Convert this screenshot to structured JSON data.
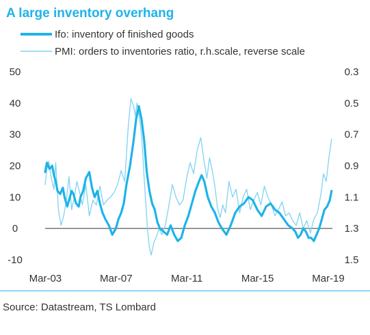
{
  "title": "A large inventory overhang",
  "source": "Source: Datastream, TS Lombard",
  "colors": {
    "accent": "#1fb3e8",
    "ifo": "#1fb3e8",
    "pmi": "#7ed3f3",
    "zero_line": "#333333",
    "text": "#333333"
  },
  "chart_data": {
    "type": "line",
    "title": "A large inventory overhang",
    "x_ticks": [
      "Mar-03",
      "Mar-07",
      "Mar-11",
      "Mar-15",
      "Mar-19"
    ],
    "left_axis": {
      "ticks": [
        "50",
        "40",
        "30",
        "20",
        "10",
        "0",
        "-10"
      ],
      "ylim": [
        -10,
        50
      ]
    },
    "right_axis": {
      "ticks": [
        "0.3",
        "0.5",
        "0.7",
        "0.9",
        "1.1",
        "1.3",
        "1.5"
      ],
      "ylim": [
        0.3,
        1.5
      ],
      "reversed": true
    },
    "series": [
      {
        "name": "Ifo: inventory of finished goods",
        "axis": "left",
        "x": [
          2003.0,
          2003.1,
          2003.25,
          2003.4,
          2003.5,
          2003.6,
          2003.7,
          2003.85,
          2004.0,
          2004.1,
          2004.25,
          2004.4,
          2004.5,
          2004.6,
          2004.75,
          2004.9,
          2005.0,
          2005.15,
          2005.3,
          2005.5,
          2005.65,
          2005.8,
          2005.95,
          2006.1,
          2006.25,
          2006.4,
          2006.6,
          2006.8,
          2007.0,
          2007.15,
          2007.3,
          2007.45,
          2007.6,
          2007.8,
          2008.0,
          2008.15,
          2008.3,
          2008.45,
          2008.6,
          2008.75,
          2008.9,
          2009.05,
          2009.2,
          2009.35,
          2009.5,
          2009.7,
          2009.9,
          2010.1,
          2010.3,
          2010.5,
          2010.7,
          2010.9,
          2011.1,
          2011.3,
          2011.5,
          2011.7,
          2011.85,
          2012.0,
          2012.2,
          2012.4,
          2012.6,
          2012.8,
          2013.0,
          2013.25,
          2013.5,
          2013.75,
          2014.0,
          2014.25,
          2014.5,
          2014.75,
          2015.0,
          2015.25,
          2015.5,
          2015.75,
          2016.0,
          2016.25,
          2016.5,
          2016.75,
          2017.0,
          2017.15,
          2017.3,
          2017.45,
          2017.6,
          2017.75,
          2017.9,
          2018.05,
          2018.2,
          2018.35,
          2018.5,
          2018.65,
          2018.8,
          2018.95,
          2019.1,
          2019.2
        ],
        "values": [
          18,
          21,
          19,
          20,
          17,
          15,
          12,
          11,
          13,
          10,
          7,
          10,
          12,
          11,
          8,
          7,
          10,
          12,
          16,
          18,
          13,
          10,
          12,
          8,
          5,
          3,
          1,
          -2,
          0,
          3,
          5,
          8,
          14,
          20,
          28,
          35,
          39,
          35,
          28,
          18,
          12,
          8,
          6,
          2,
          0,
          -1,
          -2,
          1,
          -2,
          -4,
          -3,
          1,
          4,
          8,
          12,
          15,
          17,
          15,
          10,
          7,
          5,
          2,
          0,
          -2,
          1,
          5,
          7,
          8,
          10,
          9,
          6,
          4,
          7,
          8,
          6,
          5,
          3,
          1,
          0,
          -1,
          -3,
          -2,
          0,
          -1,
          -3,
          -3,
          -4,
          -2,
          0,
          3,
          6,
          7,
          9,
          12
        ]
      },
      {
        "name": "PMI: orders to inventories ratio, r.h.scale, reverse scale",
        "axis": "right",
        "x": [
          2003.0,
          2003.1,
          2003.2,
          2003.35,
          2003.5,
          2003.6,
          2003.75,
          2003.9,
          2004.05,
          2004.2,
          2004.35,
          2004.5,
          2004.65,
          2004.8,
          2004.95,
          2005.1,
          2005.3,
          2005.5,
          2005.7,
          2005.9,
          2006.1,
          2006.3,
          2006.5,
          2006.7,
          2006.9,
          2007.1,
          2007.3,
          2007.5,
          2007.7,
          2007.85,
          2008.0,
          2008.1,
          2008.2,
          2008.3,
          2008.4,
          2008.5,
          2008.6,
          2008.7,
          2008.8,
          2008.9,
          2009.0,
          2009.15,
          2009.3,
          2009.45,
          2009.6,
          2009.8,
          2010.0,
          2010.2,
          2010.4,
          2010.6,
          2010.8,
          2011.0,
          2011.2,
          2011.4,
          2011.6,
          2011.8,
          2012.0,
          2012.15,
          2012.3,
          2012.45,
          2012.6,
          2012.75,
          2012.9,
          2013.05,
          2013.2,
          2013.4,
          2013.6,
          2013.8,
          2014.0,
          2014.2,
          2014.4,
          2014.6,
          2014.8,
          2015.0,
          2015.2,
          2015.4,
          2015.6,
          2015.8,
          2016.0,
          2016.2,
          2016.4,
          2016.6,
          2016.8,
          2017.0,
          2017.2,
          2017.4,
          2017.6,
          2017.8,
          2018.0,
          2018.2,
          2018.4,
          2018.6,
          2018.75,
          2018.9,
          2019.05,
          2019.2
        ],
        "values": [
          1.02,
          0.92,
          0.87,
          0.98,
          1.05,
          0.88,
          1.18,
          1.28,
          1.22,
          1.12,
          0.97,
          1.18,
          1.1,
          1.0,
          1.07,
          1.15,
          1.02,
          1.22,
          1.12,
          1.15,
          1.03,
          1.15,
          1.12,
          1.1,
          1.07,
          1.02,
          0.93,
          1.0,
          0.65,
          0.47,
          0.52,
          0.58,
          0.5,
          0.57,
          0.65,
          0.78,
          0.98,
          1.15,
          1.32,
          1.42,
          1.47,
          1.39,
          1.35,
          1.3,
          1.34,
          1.28,
          1.15,
          1.02,
          1.1,
          1.15,
          1.12,
          0.98,
          0.88,
          0.95,
          0.8,
          0.72,
          0.88,
          0.98,
          0.85,
          0.93,
          1.03,
          1.17,
          1.23,
          1.15,
          1.2,
          1.0,
          1.1,
          1.05,
          1.2,
          1.1,
          1.05,
          1.18,
          1.12,
          1.07,
          1.15,
          1.03,
          1.1,
          1.15,
          1.22,
          1.18,
          1.13,
          1.22,
          1.2,
          1.25,
          1.28,
          1.2,
          1.3,
          1.25,
          1.33,
          1.24,
          1.2,
          1.08,
          0.95,
          1.0,
          0.85,
          0.73
        ]
      }
    ],
    "zero_line": true,
    "grid": false,
    "legend_placement": "top-left"
  }
}
